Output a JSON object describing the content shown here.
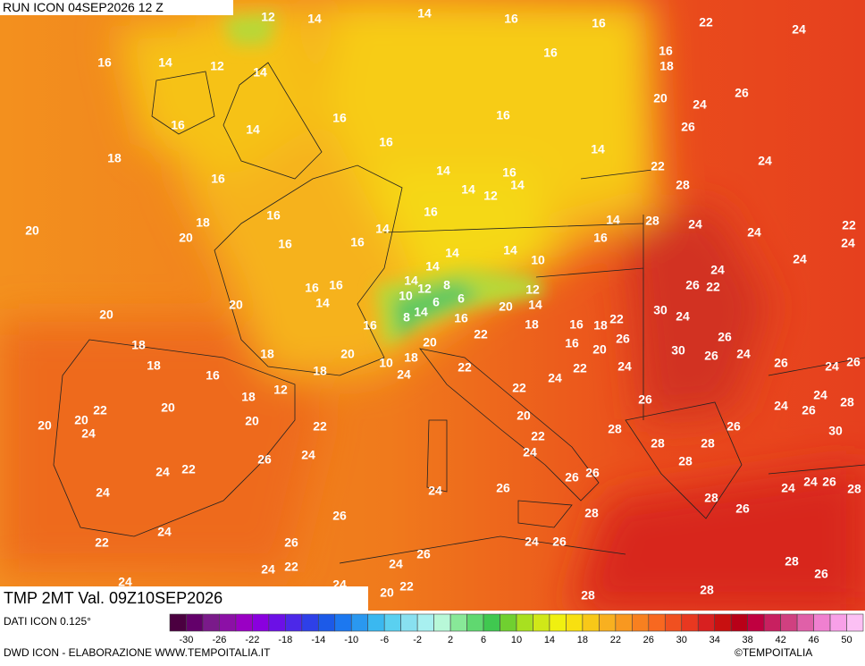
{
  "header": {
    "title": "RUN ICON 04SEP2026 12 Z"
  },
  "map": {
    "variable_label": "TMP 2MT Val. 09Z10SEP2026",
    "labels": [
      12,
      14,
      14,
      16,
      16,
      22,
      24,
      16,
      14,
      12,
      14,
      16,
      16,
      18,
      16,
      14,
      16,
      18,
      16,
      16,
      20,
      24,
      26,
      26,
      14,
      22,
      24,
      16,
      14,
      14,
      12,
      16,
      14,
      28,
      18,
      20,
      20,
      16,
      16,
      16,
      14,
      16,
      14,
      28,
      24,
      24,
      22,
      24,
      16,
      14,
      14,
      14,
      10,
      14,
      24,
      24,
      16,
      16,
      8,
      12,
      26,
      22,
      14,
      20,
      10,
      12,
      6,
      6,
      16,
      14,
      8,
      20,
      14,
      30,
      24,
      20,
      16,
      18,
      16,
      18,
      22,
      22,
      20,
      26,
      26,
      18,
      18,
      20,
      18,
      10,
      16,
      20,
      30,
      26,
      24,
      26,
      24,
      26,
      18,
      16,
      18,
      24,
      22,
      22,
      24,
      24,
      12,
      18,
      22,
      26,
      24,
      28,
      20,
      22,
      20,
      20,
      24,
      20,
      22,
      20,
      24,
      26,
      26,
      28,
      22,
      30,
      28,
      28,
      24,
      26,
      24,
      24,
      22,
      26,
      26,
      28,
      24,
      24,
      26,
      28,
      24,
      24,
      26,
      28,
      26,
      28,
      26,
      24,
      22,
      26,
      24,
      26,
      26,
      24,
      24,
      22,
      28,
      26,
      24,
      24,
      20,
      22,
      28,
      28
    ]
  },
  "legend": {
    "source": "DATI ICON 0.125°",
    "scale_ticks": [
      -30,
      -26,
      -22,
      -18,
      -14,
      -10,
      -6,
      -2,
      2,
      6,
      10,
      14,
      18,
      22,
      26,
      30,
      34,
      38,
      42,
      46,
      50
    ],
    "scale_colors": [
      "#4b0040",
      "#63006a",
      "#7a1a8a",
      "#8c10a6",
      "#9a00c4",
      "#8a00de",
      "#6c10e6",
      "#4c28e8",
      "#2e40e8",
      "#1c5ae8",
      "#1c78f0",
      "#2a98f0",
      "#3ab8f0",
      "#5ad0f0",
      "#88e0f0",
      "#a8f0f0",
      "#b8f8d8",
      "#88e898",
      "#60d870",
      "#40c850",
      "#70d030",
      "#a8e020",
      "#d0e818",
      "#f0f010",
      "#f8e010",
      "#f8c818",
      "#f8b020",
      "#f89820",
      "#f88020",
      "#f86820",
      "#f05020",
      "#e83820",
      "#d82020",
      "#c81010",
      "#b80018",
      "#c00040",
      "#c82060",
      "#d04080",
      "#e060a8",
      "#f080d0",
      "#f8a0e8",
      "#fcc0f4"
    ]
  },
  "footer": {
    "credit": "DWD ICON - ELABORAZIONE WWW.TEMPOITALIA.IT",
    "brand": "©TEMPOITALIA"
  }
}
